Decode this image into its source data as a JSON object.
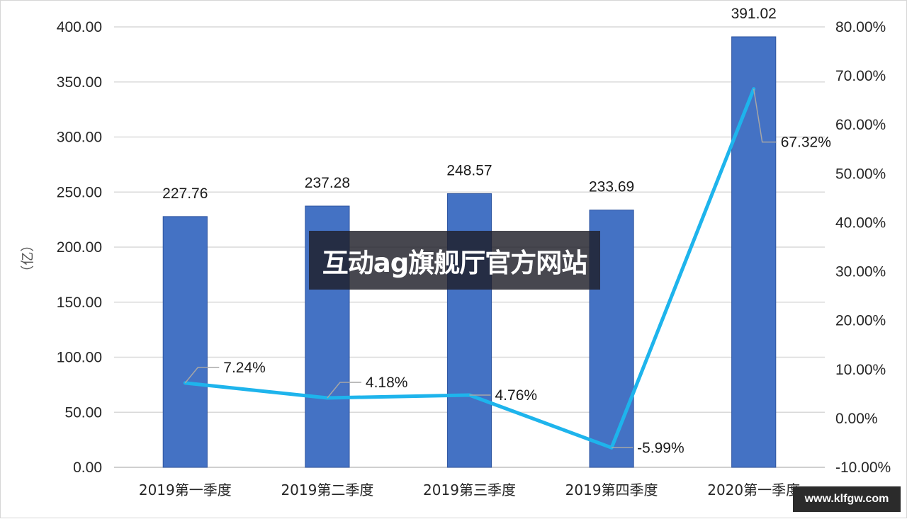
{
  "chart_data": {
    "type": "bar",
    "categories": [
      "2019第一季度",
      "2019第二季度",
      "2019第三季度",
      "2019第四季度",
      "2020第一季度"
    ],
    "series": [
      {
        "type": "bar",
        "axis": "left",
        "values": [
          227.76,
          237.28,
          248.57,
          233.69,
          391.02
        ],
        "value_labels": [
          "227.76",
          "237.28",
          "248.57",
          "233.69",
          "391.02"
        ],
        "color": "#4472c4"
      },
      {
        "type": "line",
        "axis": "right",
        "values": [
          7.24,
          4.18,
          4.76,
          -5.99,
          67.32
        ],
        "value_labels": [
          "7.24%",
          "4.18%",
          "4.76%",
          "-5.99%",
          "67.32%"
        ],
        "color": "#1eb4ec"
      }
    ],
    "ylabel": "（亿）",
    "ylim": [
      0,
      400
    ],
    "y_ticks": [
      "0.00",
      "50.00",
      "100.00",
      "150.00",
      "200.00",
      "250.00",
      "300.00",
      "350.00",
      "400.00"
    ],
    "y2lim": [
      -10,
      80
    ],
    "y2_ticks": [
      "-10.00%",
      "0.00%",
      "10.00%",
      "20.00%",
      "30.00%",
      "40.00%",
      "50.00%",
      "60.00%",
      "70.00%",
      "80.00%"
    ],
    "grid": true
  },
  "overlay": {
    "watermark": "互动ag旗舰厅官方网站",
    "url": "www.klfgw.com"
  }
}
